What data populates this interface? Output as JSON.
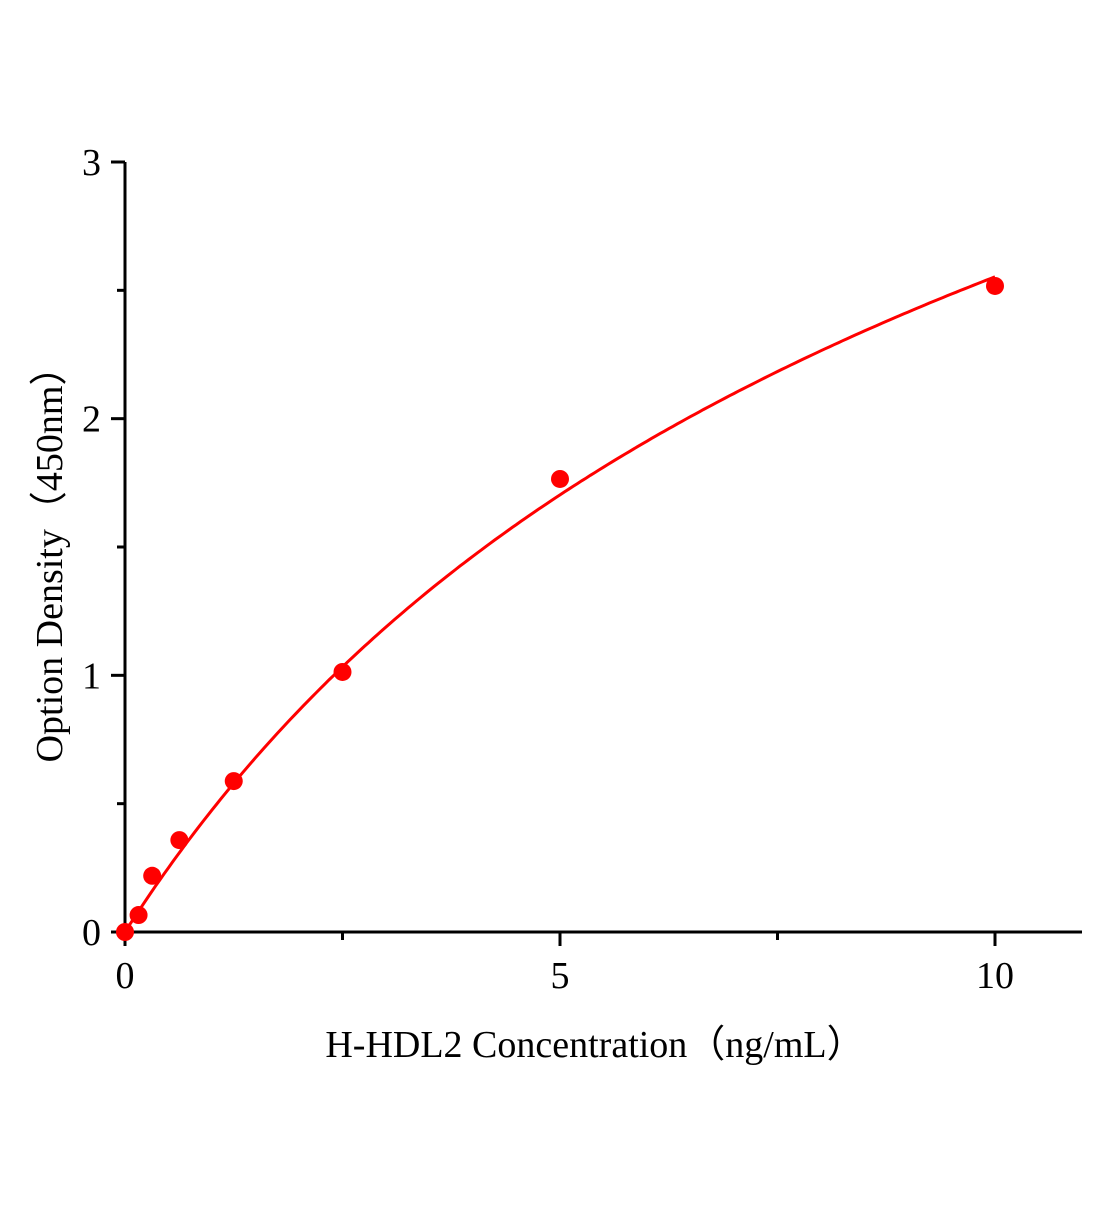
{
  "chart_data": {
    "type": "scatter",
    "title": "",
    "xlabel": "H-HDL2 Concentration（ng/mL）",
    "ylabel": "Option Density（450nm）",
    "xlim": [
      0,
      11
    ],
    "ylim": [
      0,
      3
    ],
    "xticks": [
      0,
      5,
      10
    ],
    "xtick_labels": [
      "0",
      "5",
      "10"
    ],
    "x_minor_ticks": [
      2.5,
      7.5
    ],
    "yticks": [
      0,
      1,
      2,
      3
    ],
    "ytick_labels": [
      "0",
      "1",
      "2",
      "3"
    ],
    "y_minor_ticks": [
      0.5,
      1.5,
      2.5
    ],
    "grid": false,
    "legend": "none",
    "colors": {
      "points": "#ff0000",
      "curve": "#ff0000",
      "axis": "#000000"
    },
    "series": [
      {
        "x": [
          0,
          0.156,
          0.3125,
          0.625,
          1.25,
          2.5,
          5,
          10
        ],
        "y": [
          0.0,
          0.066,
          0.219,
          0.358,
          0.588,
          1.013,
          1.765,
          2.517
        ],
        "fit_curve": true
      }
    ]
  }
}
